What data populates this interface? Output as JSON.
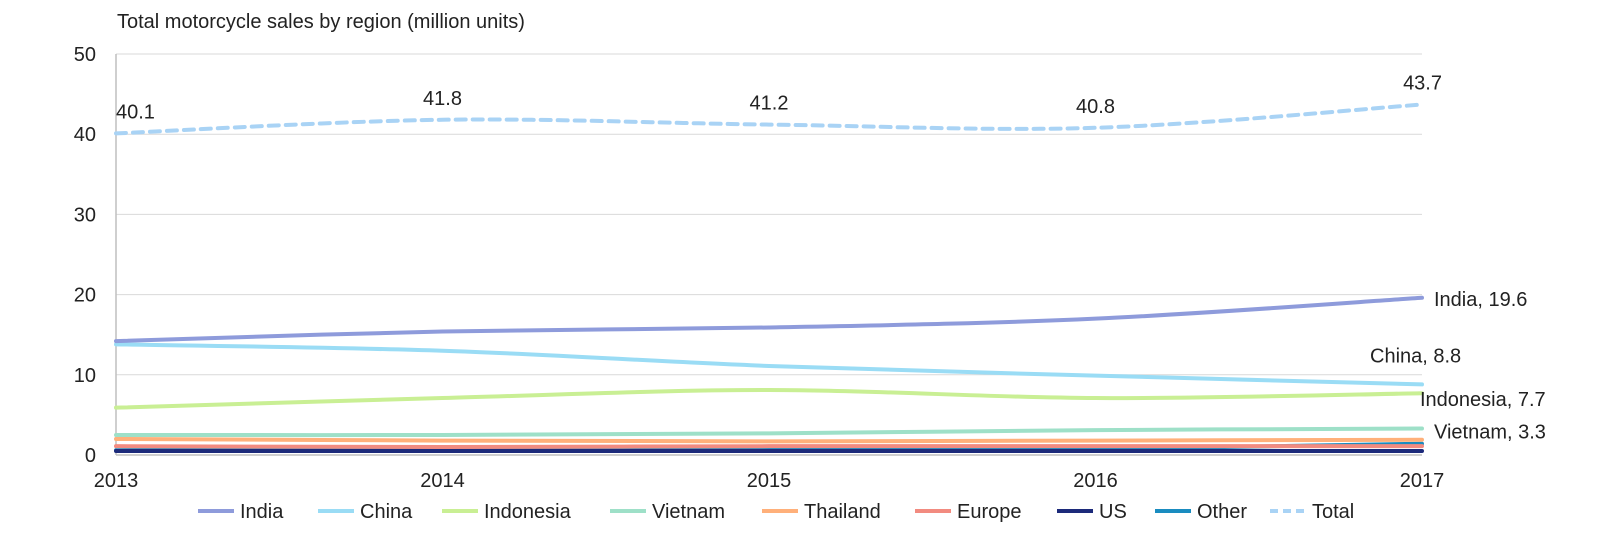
{
  "chart_data": {
    "type": "line",
    "title": "Total motorcycle sales by region (million units)",
    "xlabel": "",
    "ylabel": "",
    "x": [
      "2013",
      "2014",
      "2015",
      "2016",
      "2017"
    ],
    "ylim": [
      0,
      50
    ],
    "yticks": [
      0,
      10,
      20,
      30,
      40,
      50
    ],
    "grid": true,
    "legend_position": "bottom",
    "series": [
      {
        "name": "India",
        "color": "#8e9bdb",
        "dashed": false,
        "values": [
          14.2,
          15.4,
          15.9,
          17.0,
          19.6
        ],
        "end_label": "India, 19.6"
      },
      {
        "name": "China",
        "color": "#9adcf5",
        "dashed": false,
        "values": [
          13.8,
          13.0,
          11.1,
          9.9,
          8.8
        ],
        "end_label": "China, 8.8"
      },
      {
        "name": "Indonesia",
        "color": "#c9ef94",
        "dashed": false,
        "values": [
          5.9,
          7.1,
          8.1,
          7.1,
          7.7
        ],
        "end_label": "Indonesia, 7.7"
      },
      {
        "name": "Vietnam",
        "color": "#9ee0c8",
        "dashed": false,
        "values": [
          2.5,
          2.5,
          2.7,
          3.1,
          3.3
        ],
        "end_label": "Vietnam, 3.3"
      },
      {
        "name": "Thailand",
        "color": "#ffb07a",
        "dashed": false,
        "values": [
          2.0,
          1.8,
          1.7,
          1.8,
          1.9
        ]
      },
      {
        "name": "Europe",
        "color": "#f28b80",
        "dashed": false,
        "values": [
          1.1,
          1.0,
          1.1,
          1.1,
          1.1
        ]
      },
      {
        "name": "US",
        "color": "#1c2a7a",
        "dashed": false,
        "values": [
          0.5,
          0.5,
          0.5,
          0.5,
          0.5
        ]
      },
      {
        "name": "Other",
        "color": "#1a8cc0",
        "dashed": false,
        "values": [
          0.6,
          0.7,
          0.7,
          0.8,
          1.4
        ]
      },
      {
        "name": "Total",
        "color": "#a9d3f5",
        "dashed": true,
        "values": [
          40.1,
          41.8,
          41.2,
          40.8,
          43.7
        ],
        "point_labels": [
          "40.1",
          "41.8",
          "41.2",
          "40.8",
          "43.7"
        ]
      }
    ]
  }
}
